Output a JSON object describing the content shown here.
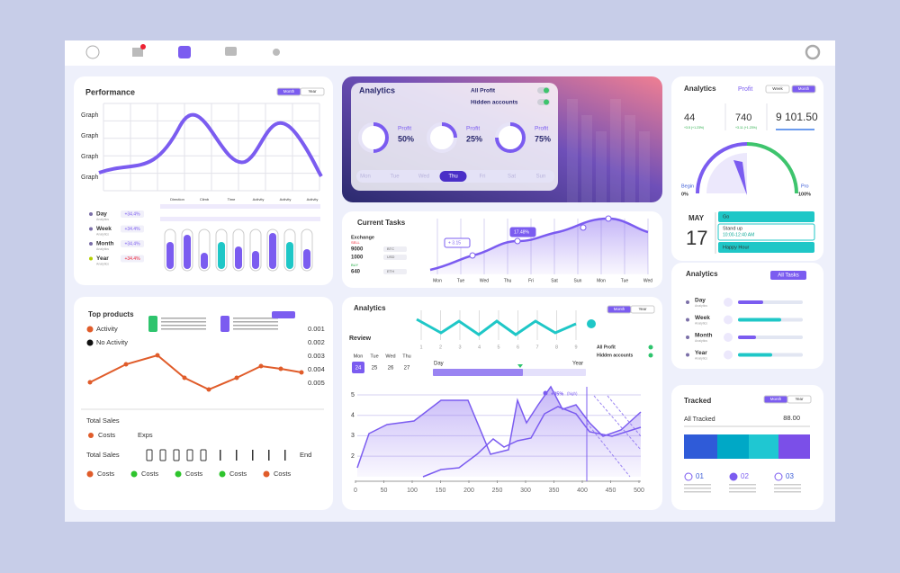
{
  "performance": {
    "title": "Performance",
    "tabs": [
      "Month",
      "Year"
    ],
    "y_labels": [
      "Graph",
      "Graph",
      "Graph",
      "Graph"
    ],
    "legend": [
      {
        "label": "Day",
        "sub": "Analytics",
        "value": "+34.4%"
      },
      {
        "label": "Week",
        "sub": "Analytics",
        "value": "+34.4%"
      },
      {
        "label": "Month",
        "sub": "Analytics",
        "value": "+34.4%"
      },
      {
        "label": "Year",
        "sub": "Analytics",
        "value": "+34.4%"
      }
    ],
    "table_headers": [
      "Direction",
      "Climb",
      "Time",
      "Activity",
      "Activity",
      "Activity"
    ]
  },
  "analytics_top": {
    "title": "Analytics",
    "toggles": [
      "All Profit",
      "Hidden accounts"
    ],
    "rings": [
      {
        "label": "Profit",
        "value": 50,
        "text": "50%"
      },
      {
        "label": "Profit",
        "value": 25,
        "text": "25%"
      },
      {
        "label": "Profit",
        "value": 75,
        "text": "75%"
      }
    ],
    "days": [
      "Mon",
      "Tue",
      "Wed",
      "Thu",
      "Fri",
      "Sat",
      "Sun"
    ],
    "active_day": "Thu"
  },
  "current_tasks": {
    "title": "Current Tasks",
    "exchange": "Exchange",
    "sell": "SELL",
    "buy": "BUY",
    "rows": [
      [
        "9000",
        "BTC"
      ],
      [
        "1000",
        "USD"
      ],
      [
        "640",
        "ETH"
      ]
    ],
    "badges": [
      "+ 3.15",
      "17.48%"
    ],
    "x_labels": [
      "Mon",
      "Tue",
      "Wed",
      "Thu",
      "Fri",
      "Sat",
      "Sun",
      "Mon",
      "Tue",
      "Wed"
    ]
  },
  "stats": {
    "title": "Analytics",
    "subtitle": "Profit",
    "tabs": [
      "Week",
      "Month"
    ],
    "items": [
      {
        "value": "44",
        "change": "+3.5 (+1.23%)"
      },
      {
        "value": "740",
        "change": "+3.11 (+1.23%)"
      },
      {
        "value": "9 101.50"
      }
    ],
    "gauge": {
      "begin": "Begin",
      "begin_value": "0%",
      "end": "Pro",
      "end_value": "100%"
    }
  },
  "calendar": {
    "month": "MAY",
    "day": "17",
    "events": [
      "Go",
      "Stand up",
      "10:00-12:40 AM",
      "Happy Hour"
    ]
  },
  "tasks": {
    "title": "Analytics",
    "button": "All Tasks",
    "rows": [
      {
        "label": "Day",
        "sub": "Analytics"
      },
      {
        "label": "Week",
        "sub": "Analytics"
      },
      {
        "label": "Month",
        "sub": "Analytics"
      },
      {
        "label": "Year",
        "sub": "Analytics"
      }
    ]
  },
  "tracked": {
    "title": "Tracked",
    "tabs": [
      "Month",
      "Year"
    ],
    "label": "All Tracked",
    "value": "88.00",
    "items": [
      "01",
      "02",
      "03"
    ]
  },
  "top_products": {
    "title": "Top products",
    "legend": [
      "Activity",
      "No Activity"
    ],
    "y_labels": [
      "0.001",
      "0.002",
      "0.003",
      "0.004",
      "0.005"
    ],
    "total_sales": "Total Sales",
    "costs": "Costs",
    "exps": "Exps",
    "total_sales_2": "Total Sales",
    "end": "End",
    "cost_items": [
      "Costs",
      "Costs",
      "Costs",
      "Costs",
      "Costs"
    ]
  },
  "analytics_bottom": {
    "title": "Analytics",
    "tabs": [
      "Month",
      "Year"
    ],
    "review": "Review",
    "wave_labels": [
      "1",
      "2",
      "3",
      "4",
      "5",
      "6",
      "7",
      "8",
      "9"
    ],
    "days": [
      "Mon",
      "Tue",
      "Wed",
      "Thu"
    ],
    "dates": [
      "24",
      "25",
      "26",
      "27"
    ],
    "range": [
      "Day",
      "Year"
    ],
    "toggles": [
      "All Profit",
      "Hidden accounts"
    ],
    "peak": "+05%",
    "peak_note": "(high)",
    "yticks": [
      5,
      4,
      3,
      2
    ],
    "xticks": [
      0,
      50,
      100,
      150,
      200,
      250,
      300,
      350,
      400,
      450,
      500
    ]
  }
}
